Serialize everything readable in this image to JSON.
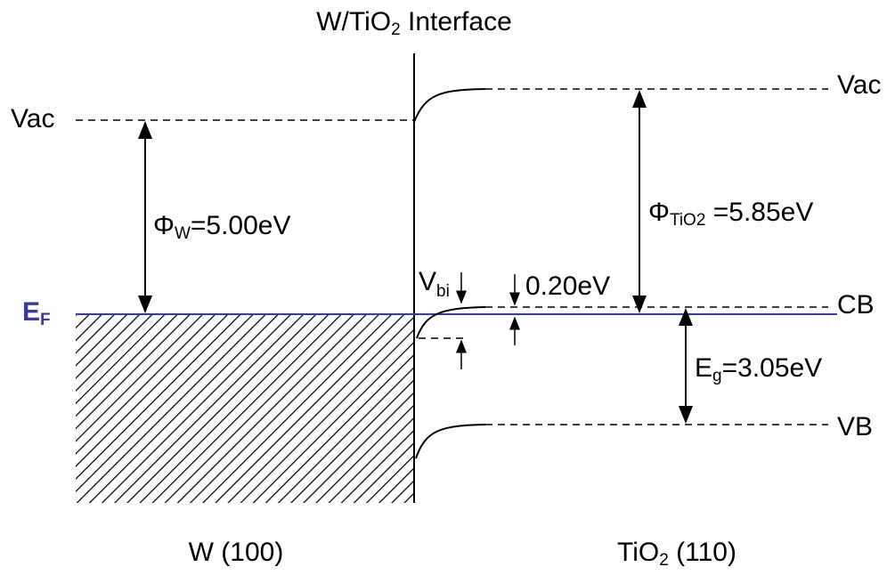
{
  "title": [
    "W/TiO",
    "2",
    " Interface"
  ],
  "metal": {
    "vac": "Vac",
    "fermi": [
      "E",
      "F"
    ],
    "work_function": [
      "Φ",
      "W",
      "=5.00eV"
    ],
    "label": "W (100)"
  },
  "oxide": {
    "vac": "Vac",
    "cb": "CB",
    "vb": "VB",
    "work_function": [
      "Φ",
      "TiO2",
      " =5.85eV"
    ],
    "band_gap": [
      "E",
      "g",
      "=3.05eV"
    ],
    "offset": "0.20eV",
    "label": [
      "TiO",
      "2",
      " (110)"
    ]
  },
  "built_in": [
    "V",
    "bi"
  ]
}
